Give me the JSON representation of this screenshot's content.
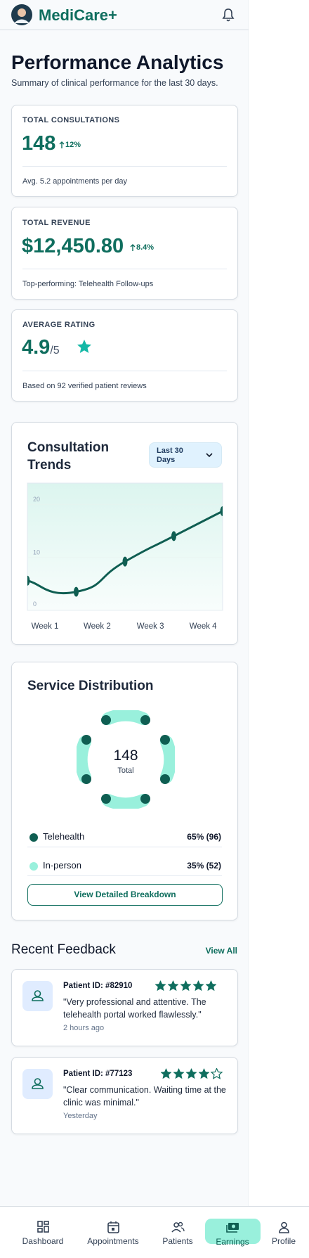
{
  "header": {
    "brand": "MediCare+"
  },
  "page": {
    "title": "Performance Analytics",
    "subtitle": "Summary of clinical performance for the last 30 days."
  },
  "metrics": [
    {
      "label": "TOTAL CONSULTATIONS",
      "value": "148",
      "change": "12%",
      "note": "Avg. 5.2 appointments per day"
    },
    {
      "label": "TOTAL REVENUE",
      "value": "$12,450.80",
      "change": "8.4%",
      "note": "Top-performing: Telehealth Follow-ups"
    },
    {
      "label": "AVERAGE RATING",
      "value": "4.9",
      "suffix": "/5",
      "note": "Based on 92 verified patient reviews"
    }
  ],
  "chart_data": {
    "type": "line",
    "title": "Consultation Trends",
    "filter": "Last 30 Days",
    "x": [
      0,
      1,
      2,
      3,
      4
    ],
    "xlim": [
      0,
      4
    ],
    "xticks": [
      {
        "value": 0.36,
        "label": "Week 1"
      },
      {
        "value": 1.43,
        "label": "Week 2"
      },
      {
        "value": 2.52,
        "label": "Week 3"
      },
      {
        "value": 3.6,
        "label": "Week 4"
      }
    ],
    "ylim": [
      0,
      24
    ],
    "yticks": [
      0,
      10,
      20
    ],
    "series": [
      {
        "color": "#0f5e52",
        "values": [
          5.6,
          3.5,
          9.2,
          14,
          18.7
        ]
      }
    ]
  },
  "distribution": {
    "title": "Service Distribution",
    "total": "148",
    "total_label": "Total",
    "items": [
      {
        "name": "Telehealth",
        "value": "65% (96)",
        "color": "#0f5e52"
      },
      {
        "name": "In-person",
        "value": "35% (52)",
        "color": "#99f0dc"
      }
    ],
    "button": "View Detailed Breakdown"
  },
  "feedback": {
    "title": "Recent Feedback",
    "link": "View All",
    "items": [
      {
        "patient": "Patient ID: #82910",
        "rating": 5,
        "quote": "\"Very professional and attentive. The telehealth portal worked flawlessly.\"",
        "time": "2 hours ago"
      },
      {
        "patient": "Patient ID: #77123",
        "rating": 4,
        "quote": "\"Clear communication. Waiting time at the clinic was minimal.\"",
        "time": "Yesterday"
      }
    ]
  },
  "nav": {
    "items": [
      "Dashboard",
      "Appointments",
      "Patients",
      "Earnings",
      "Profile"
    ],
    "active": 3
  }
}
